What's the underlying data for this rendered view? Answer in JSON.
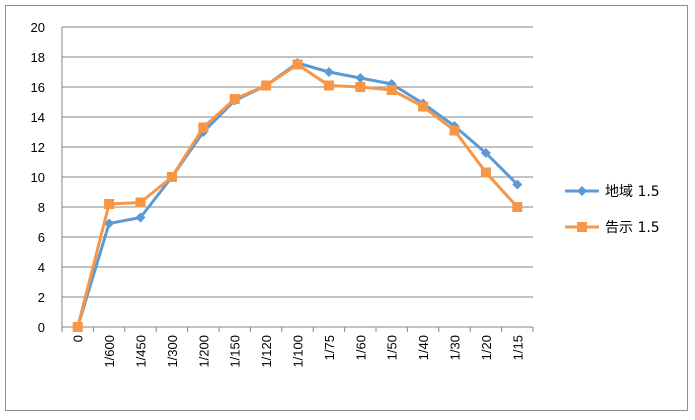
{
  "chart_data": {
    "type": "line",
    "title": "",
    "xlabel": "",
    "ylabel": "",
    "categories": [
      "0",
      "1/600",
      "1/450",
      "1/300",
      "1/200",
      "1/150",
      "1/120",
      "1/100",
      "1/75",
      "1/60",
      "1/50",
      "1/40",
      "1/30",
      "1/20",
      "1/15"
    ],
    "ylim": [
      0,
      20
    ],
    "yticks": [
      0,
      2,
      4,
      6,
      8,
      10,
      12,
      14,
      16,
      18,
      20
    ],
    "grid": true,
    "legend": "right",
    "series": [
      {
        "name": "地域 1.5",
        "color": "#5b9bd5",
        "marker": "diamond",
        "values": [
          0,
          6.9,
          7.3,
          10.0,
          13.0,
          15.1,
          16.1,
          17.6,
          17.0,
          16.6,
          16.2,
          14.9,
          13.4,
          11.6,
          9.5
        ]
      },
      {
        "name": "告示 1.5",
        "color": "#f79646",
        "marker": "square",
        "values": [
          0,
          8.2,
          8.3,
          10.0,
          13.3,
          15.2,
          16.1,
          17.5,
          16.1,
          16.0,
          15.8,
          14.7,
          13.1,
          10.3,
          8.0
        ]
      }
    ]
  }
}
